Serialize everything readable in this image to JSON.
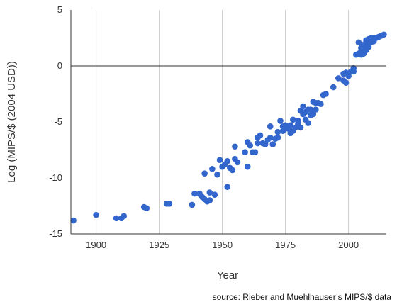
{
  "chart_data": {
    "type": "scatter",
    "xlabel": "Year",
    "ylabel": "Log (MIPS/$ (2004 USD))",
    "xlim": [
      1890,
      2015
    ],
    "ylim": [
      -15,
      5
    ],
    "xticks": [
      1900,
      1925,
      1950,
      1975,
      2000
    ],
    "yticks": [
      5,
      0,
      -5,
      -10,
      -15
    ],
    "grid": "vertical",
    "marker_color": "#3366cc",
    "points": [
      [
        1891,
        -13.8
      ],
      [
        1900,
        -13.3
      ],
      [
        1908,
        -13.6
      ],
      [
        1910,
        -13.6
      ],
      [
        1911,
        -13.4
      ],
      [
        1919,
        -12.6
      ],
      [
        1920,
        -12.7
      ],
      [
        1928,
        -12.3
      ],
      [
        1929,
        -12.3
      ],
      [
        1938,
        -12.4
      ],
      [
        1939,
        -11.4
      ],
      [
        1941,
        -11.4
      ],
      [
        1942,
        -11.7
      ],
      [
        1943,
        -9.6
      ],
      [
        1943,
        -11.9
      ],
      [
        1944,
        -12.1
      ],
      [
        1945,
        -11.3
      ],
      [
        1945,
        -12.0
      ],
      [
        1946,
        -9.2
      ],
      [
        1947,
        -11.5
      ],
      [
        1948,
        -9.7
      ],
      [
        1949,
        -8.4
      ],
      [
        1950,
        -9.0
      ],
      [
        1951,
        -8.8
      ],
      [
        1952,
        -10.8
      ],
      [
        1952,
        -8.5
      ],
      [
        1953,
        -9.1
      ],
      [
        1954,
        -9.3
      ],
      [
        1955,
        -8.3
      ],
      [
        1955,
        -7.2
      ],
      [
        1956,
        -8.6
      ],
      [
        1959,
        -7.7
      ],
      [
        1960,
        -6.8
      ],
      [
        1960,
        -9.0
      ],
      [
        1961,
        -7.1
      ],
      [
        1962,
        -7.7
      ],
      [
        1963,
        -7.7
      ],
      [
        1964,
        -6.9
      ],
      [
        1964,
        -6.4
      ],
      [
        1965,
        -6.2
      ],
      [
        1966,
        -6.9
      ],
      [
        1967,
        -7.0
      ],
      [
        1968,
        -6.6
      ],
      [
        1969,
        -5.4
      ],
      [
        1969,
        -6.4
      ],
      [
        1970,
        -7.0
      ],
      [
        1971,
        -6.5
      ],
      [
        1972,
        -6.4
      ],
      [
        1972,
        -5.9
      ],
      [
        1973,
        -4.9
      ],
      [
        1974,
        -5.4
      ],
      [
        1974,
        -5.8
      ],
      [
        1975,
        -5.3
      ],
      [
        1976,
        -5.6
      ],
      [
        1977,
        -5.3
      ],
      [
        1977,
        -6.0
      ],
      [
        1978,
        -5.8
      ],
      [
        1978,
        -4.8
      ],
      [
        1979,
        -5.5
      ],
      [
        1980,
        -5.2
      ],
      [
        1980,
        -4.9
      ],
      [
        1981,
        -5.5
      ],
      [
        1981,
        -4.0
      ],
      [
        1982,
        -4.3
      ],
      [
        1982,
        -3.6
      ],
      [
        1983,
        -4.8
      ],
      [
        1983,
        -4.1
      ],
      [
        1984,
        -3.9
      ],
      [
        1984,
        -5.1
      ],
      [
        1985,
        -3.9
      ],
      [
        1985,
        -4.4
      ],
      [
        1986,
        -4.3
      ],
      [
        1986,
        -3.2
      ],
      [
        1987,
        -3.3
      ],
      [
        1987,
        -3.9
      ],
      [
        1988,
        -3.3
      ],
      [
        1989,
        -3.4
      ],
      [
        1990,
        -2.6
      ],
      [
        1991,
        -2.5
      ],
      [
        1994,
        -1.9
      ],
      [
        1996,
        -1.1
      ],
      [
        1998,
        -1.3
      ],
      [
        1998,
        -0.7
      ],
      [
        1999,
        -1.5
      ],
      [
        1999,
        -0.6
      ],
      [
        2000,
        -0.9
      ],
      [
        2001,
        -0.5
      ],
      [
        2002,
        -0.2
      ],
      [
        2002,
        -0.5
      ],
      [
        2003,
        1.0
      ],
      [
        2004,
        1.1
      ],
      [
        2004,
        2.1
      ],
      [
        2005,
        1.0
      ],
      [
        2005,
        1.6
      ],
      [
        2005,
        1.3
      ],
      [
        2006,
        1.1
      ],
      [
        2006,
        1.9
      ],
      [
        2006,
        1.5
      ],
      [
        2007,
        1.4
      ],
      [
        2007,
        1.8
      ],
      [
        2007,
        2.3
      ],
      [
        2008,
        1.7
      ],
      [
        2008,
        2.0
      ],
      [
        2008,
        2.4
      ],
      [
        2009,
        2.1
      ],
      [
        2009,
        2.5
      ],
      [
        2010,
        2.2
      ],
      [
        2010,
        2.5
      ],
      [
        2011,
        2.5
      ],
      [
        2012,
        2.6
      ],
      [
        2013,
        2.7
      ],
      [
        2014,
        2.8
      ]
    ]
  },
  "source": "source: Rieber and Muehlhauser’s MIPS/$ data"
}
